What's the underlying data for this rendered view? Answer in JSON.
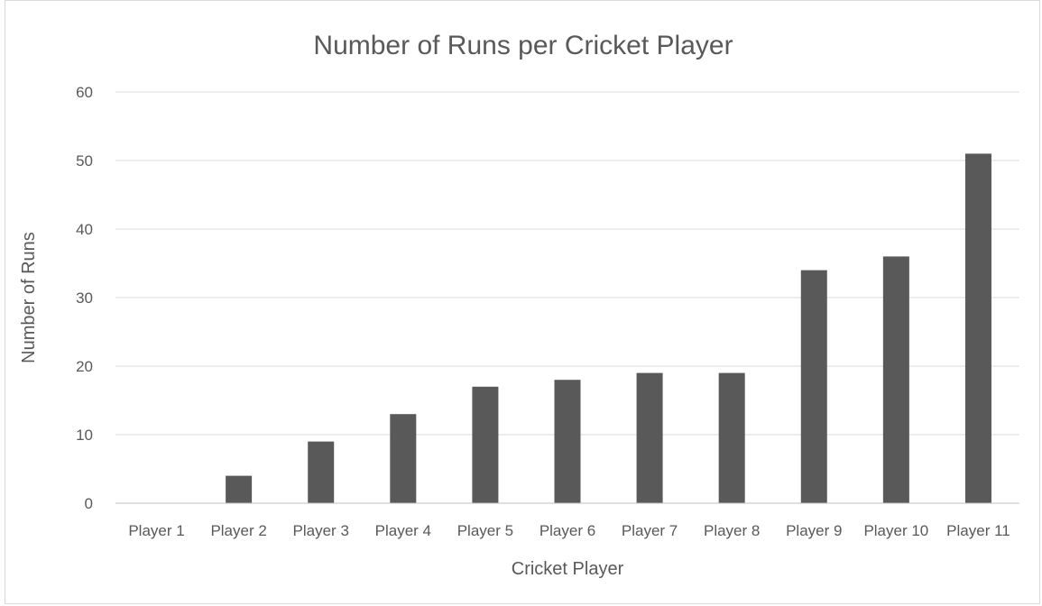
{
  "chart_data": {
    "type": "bar",
    "title": "Number of Runs per Cricket Player",
    "xlabel": "Cricket Player",
    "ylabel": "Number of Runs",
    "categories": [
      "Player 1",
      "Player 2",
      "Player 3",
      "Player 4",
      "Player 5",
      "Player 6",
      "Player 7",
      "Player 8",
      "Player 9",
      "Player 10",
      "Player 11"
    ],
    "values": [
      0,
      4,
      9,
      13,
      17,
      18,
      19,
      19,
      34,
      36,
      51
    ],
    "ylim": [
      0,
      60
    ],
    "yticks": [
      0,
      10,
      20,
      30,
      40,
      50,
      60
    ],
    "grid": true,
    "legend": "none",
    "bar_color": "#595959"
  }
}
